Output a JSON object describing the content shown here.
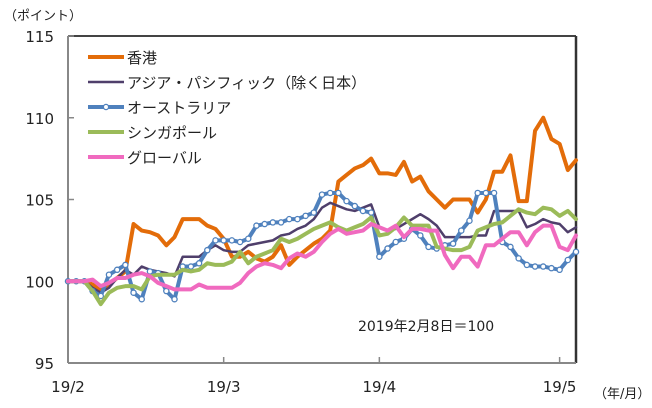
{
  "chart_data": {
    "type": "line",
    "title": "",
    "ylabel": "（ポイント）",
    "xlabel": "（年/月）",
    "ylim": [
      95,
      115
    ],
    "yticks": [
      95,
      100,
      105,
      110,
      115
    ],
    "xlim": [
      0,
      62
    ],
    "xticks": [
      {
        "x": 0,
        "label": "19/2"
      },
      {
        "x": 19,
        "label": "19/3"
      },
      {
        "x": 38,
        "label": "19/4"
      },
      {
        "x": 60,
        "label": "19/5"
      }
    ],
    "grid": false,
    "legend_position": "top-left",
    "annotation": "2019年2月8日＝100",
    "series": [
      {
        "name": "香港",
        "color": "#E36C09",
        "markers": false,
        "values": [
          100,
          100,
          100,
          99.8,
          99.5,
          99.8,
          100.2,
          100.6,
          103.5,
          103.1,
          103,
          102.8,
          102.2,
          102.7,
          103.8,
          103.8,
          103.8,
          103.4,
          103.2,
          102.6,
          101.5,
          101.5,
          101.8,
          101.4,
          101.2,
          101.5,
          102.2,
          101,
          101.5,
          101.9,
          102.3,
          102.6,
          103.1,
          106.1,
          106.5,
          106.9,
          107.1,
          107.5,
          106.6,
          106.6,
          106.5,
          107.3,
          106.1,
          106.4,
          105.5,
          105,
          104.5,
          105.0,
          105.0,
          105.0,
          104.2,
          105.0,
          106.7,
          106.7,
          107.7,
          104.9,
          104.9,
          109.2,
          110.0,
          108.7,
          108.4,
          106.8,
          107.4
        ]
      },
      {
        "name": "アジア・パシフィック（除く日本）",
        "color": "#4F3F6B",
        "markers": false,
        "values": [
          100,
          100,
          100,
          99.6,
          99.3,
          99.6,
          100.2,
          100.7,
          100.4,
          100.9,
          100.7,
          100.6,
          100.5,
          100.3,
          101.5,
          101.5,
          101.5,
          101.9,
          102.2,
          101.9,
          101.8,
          101.8,
          102.2,
          102.3,
          102.4,
          102.5,
          102.8,
          102.9,
          103.2,
          103.4,
          103.8,
          104.5,
          104.8,
          104.6,
          104.4,
          104.3,
          104.5,
          104.7,
          103.3,
          103.1,
          103.2,
          103.5,
          103.8,
          104.1,
          103.8,
          103.4,
          102.7,
          102.7,
          102.7,
          102.7,
          102.8,
          102.8,
          104.3,
          104.3,
          104.3,
          104.3,
          103.3,
          103.5,
          103.8,
          103.6,
          103.5,
          103,
          103.3
        ]
      },
      {
        "name": "オーストラリア",
        "color": "#4F81BD",
        "markers": true,
        "values": [
          100,
          100,
          100,
          99.4,
          99.1,
          100.4,
          100.7,
          101,
          99.3,
          98.9,
          100.6,
          100.5,
          99.4,
          98.9,
          100.9,
          100.9,
          101.1,
          101.9,
          102.5,
          102.5,
          102.5,
          102.4,
          102.6,
          103.4,
          103.5,
          103.6,
          103.6,
          103.8,
          103.8,
          104,
          104.2,
          105.3,
          105.4,
          105.4,
          104.9,
          104.6,
          104.3,
          104.2,
          101.5,
          102.0,
          102.4,
          102.6,
          103.2,
          102.8,
          102.1,
          102.0,
          102.2,
          102.3,
          103.1,
          103.7,
          105.4,
          105.4,
          105.4,
          102.4,
          102.1,
          101.4,
          101,
          100.9,
          100.9,
          100.8,
          100.7,
          101.3,
          101.8
        ]
      },
      {
        "name": "シンガポール",
        "color": "#9BBB59",
        "markers": false,
        "values": [
          100,
          100,
          100,
          99.4,
          98.6,
          99.3,
          99.6,
          99.7,
          99.7,
          99.5,
          100.3,
          100.4,
          100.4,
          100.4,
          100.7,
          100.6,
          100.7,
          101.1,
          101,
          101,
          101.2,
          101.8,
          101.1,
          101.5,
          101.7,
          101.9,
          102.6,
          102.4,
          102.6,
          102.9,
          103.2,
          103.4,
          103.6,
          103.3,
          103.1,
          103.3,
          103.5,
          103.9,
          102.8,
          102.9,
          103.3,
          103.9,
          103.4,
          103.4,
          103.4,
          102.1,
          102,
          101.9,
          101.9,
          102.1,
          103.1,
          103.3,
          103.5,
          103.6,
          104,
          104.4,
          104.2,
          104.1,
          104.5,
          104.4,
          104,
          104.3,
          103.8
        ]
      },
      {
        "name": "グローバル",
        "color": "#F06ABF",
        "markers": false,
        "values": [
          100,
          100,
          100,
          100.1,
          99.7,
          99.9,
          100.2,
          100.2,
          100.4,
          100.5,
          100.3,
          99.9,
          99.7,
          99.5,
          99.5,
          99.5,
          99.8,
          99.6,
          99.6,
          99.6,
          99.6,
          99.9,
          100.5,
          100.9,
          101.1,
          101,
          100.8,
          101.4,
          101.7,
          101.5,
          101.8,
          102.4,
          102.9,
          103.2,
          102.9,
          103,
          103.1,
          103.5,
          103.3,
          103.1,
          103.4,
          102.7,
          103.2,
          103.2,
          103.1,
          103.1,
          101.6,
          100.8,
          101.5,
          101.5,
          100.9,
          102.2,
          102.2,
          102.6,
          103,
          103,
          102.2,
          103,
          103.4,
          103.4,
          102.1,
          101.9,
          102.8
        ]
      }
    ]
  }
}
